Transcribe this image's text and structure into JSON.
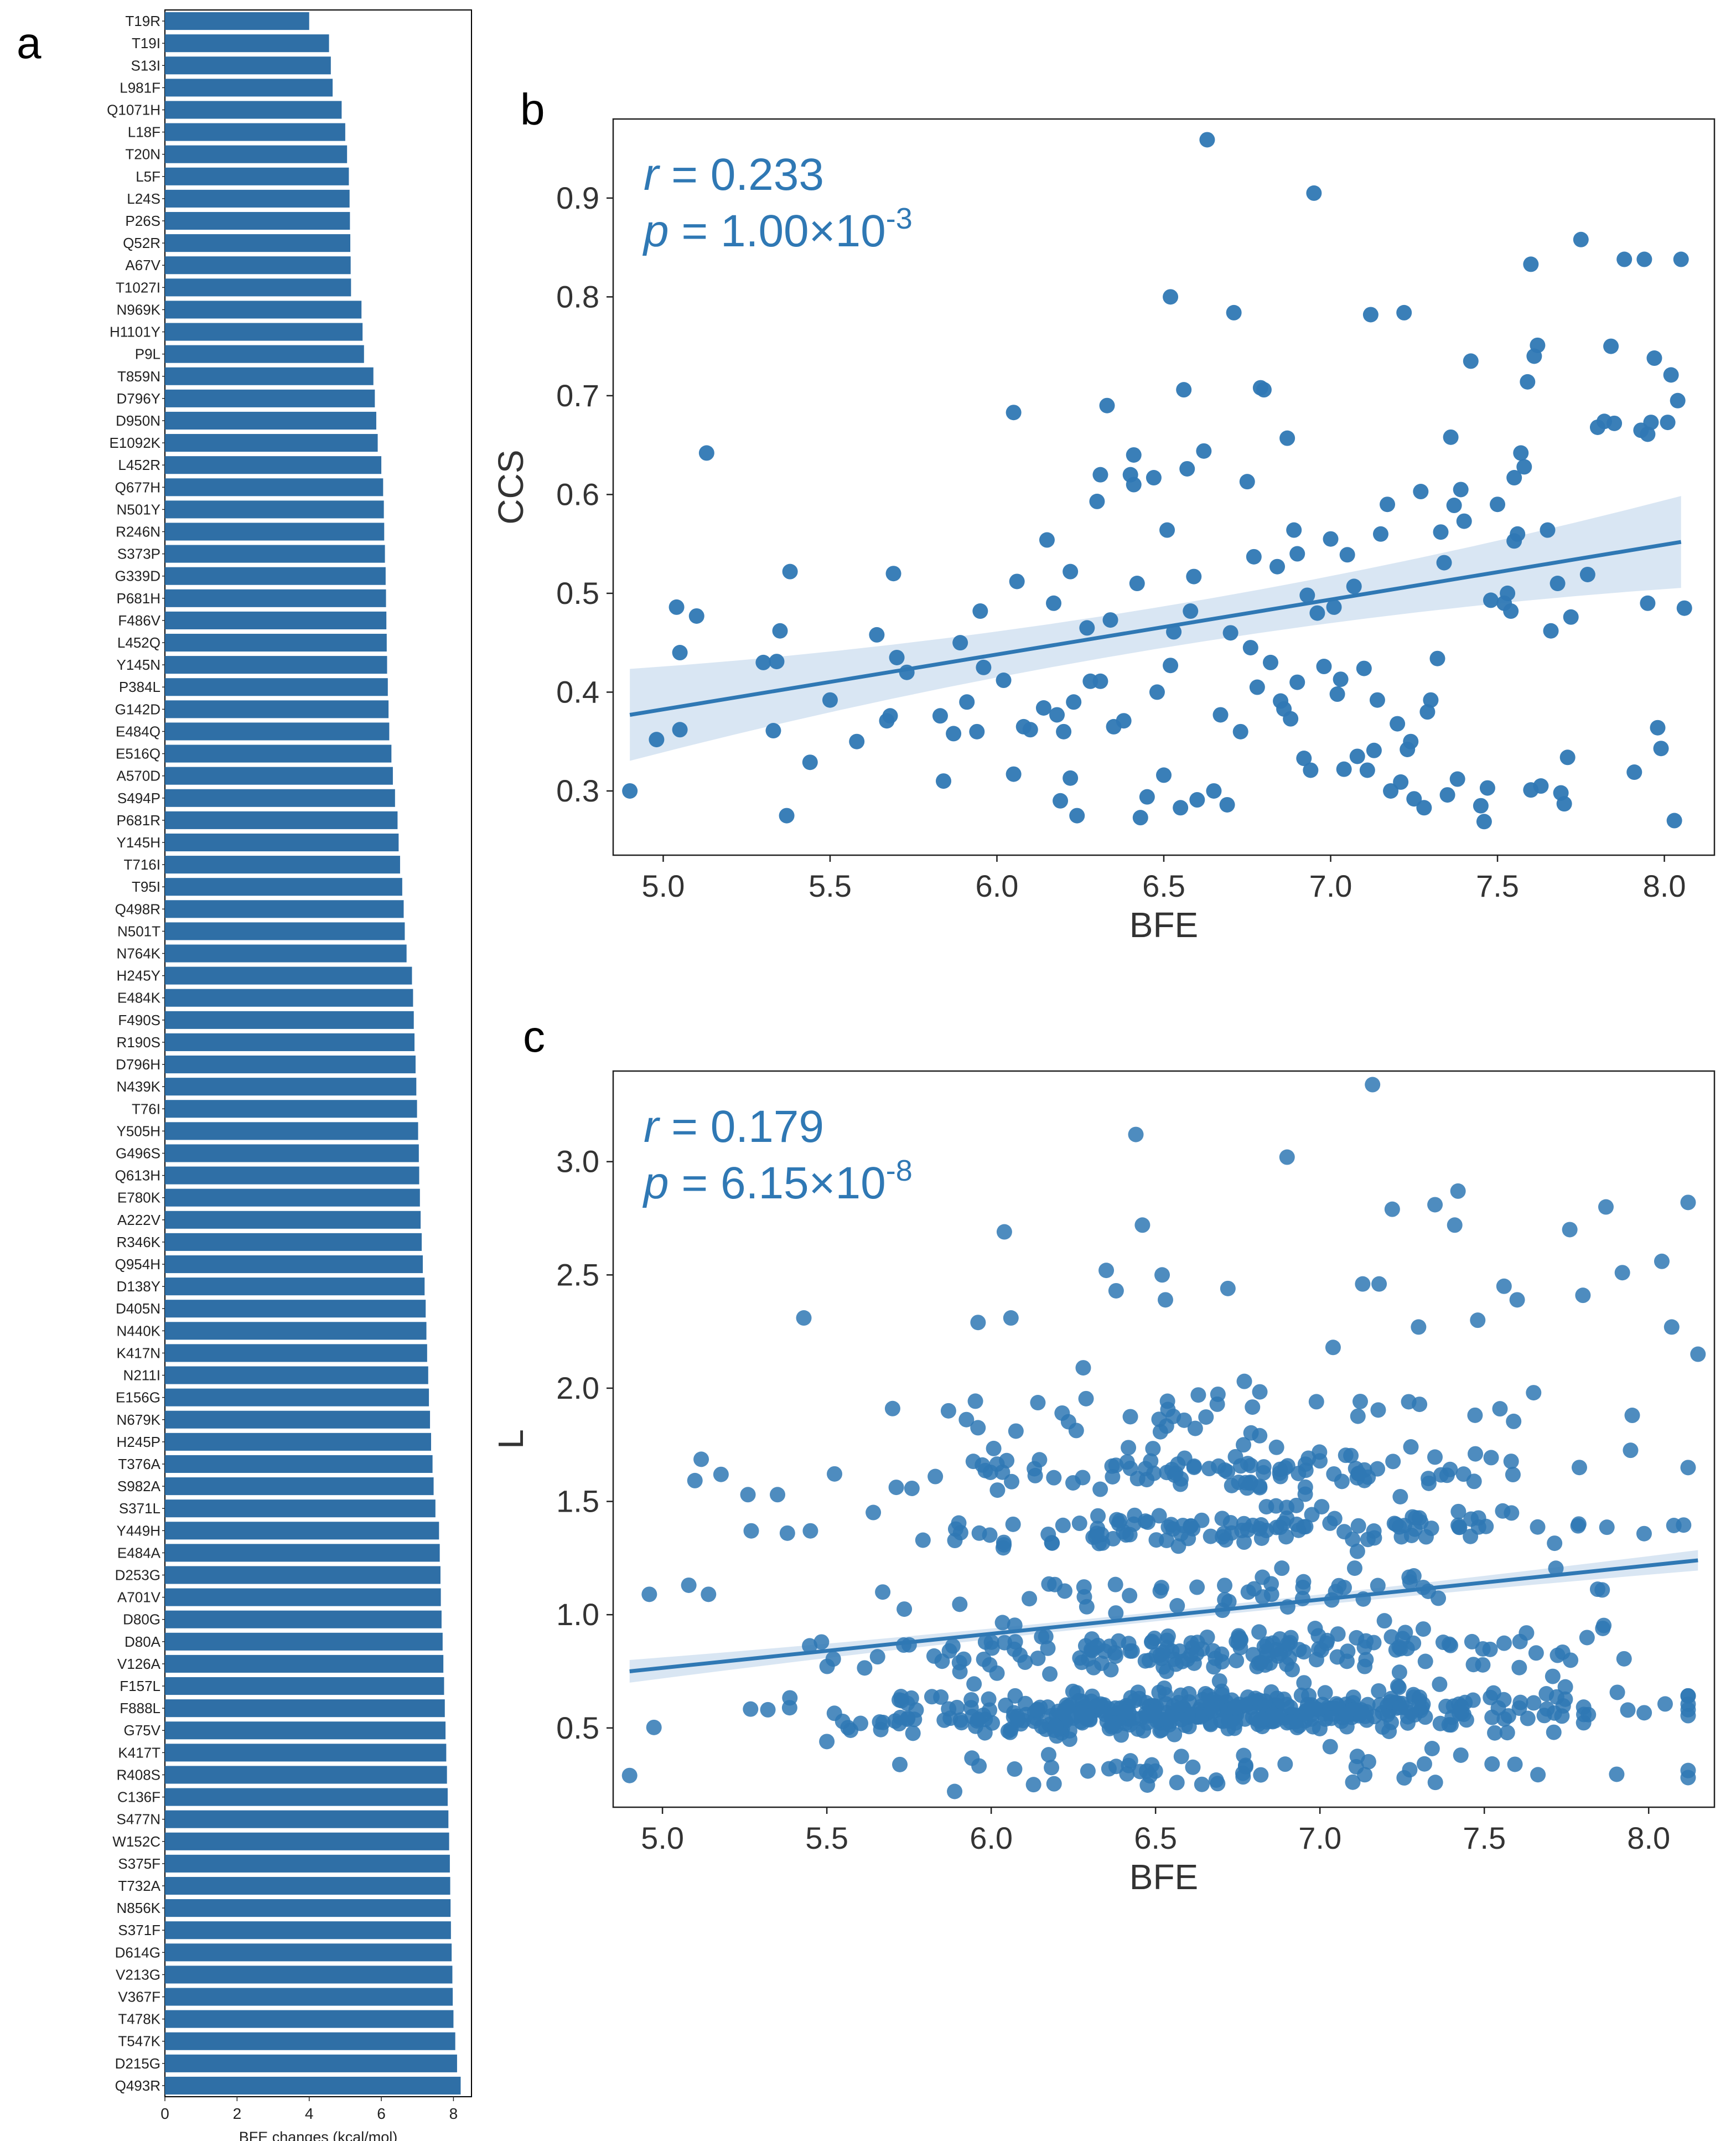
{
  "panels": {
    "a": "a",
    "b": "b",
    "c": "c"
  },
  "chart_data": [
    {
      "panel": "a",
      "type": "bar",
      "orientation": "horizontal",
      "color": "#2F6FA6",
      "xlabel": "BFE changes (kcal/mol)",
      "xlim": [
        0,
        8.5
      ],
      "xticks": [
        0,
        2,
        4,
        6,
        8
      ],
      "categories": [
        "T19R",
        "T19I",
        "S13I",
        "L981F",
        "Q1071H",
        "L18F",
        "T20N",
        "L5F",
        "L24S",
        "P26S",
        "Q52R",
        "A67V",
        "T1027I",
        "N969K",
        "H1101Y",
        "P9L",
        "T859N",
        "D796Y",
        "D950N",
        "E1092K",
        "L452R",
        "Q677H",
        "N501Y",
        "R246N",
        "S373P",
        "G339D",
        "P681H",
        "F486V",
        "L452Q",
        "Y145N",
        "P384L",
        "G142D",
        "E484Q",
        "E516Q",
        "A570D",
        "S494P",
        "P681R",
        "Y145H",
        "T716I",
        "T95I",
        "Q498R",
        "N501T",
        "N764K",
        "H245Y",
        "E484K",
        "F490S",
        "R190S",
        "D796H",
        "N439K",
        "T76I",
        "Y505H",
        "G496S",
        "Q613H",
        "E780K",
        "A222V",
        "R346K",
        "Q954H",
        "D138Y",
        "D405N",
        "N440K",
        "K417N",
        "N211I",
        "E156G",
        "N679K",
        "H245P",
        "T376A",
        "S982A",
        "S371L",
        "Y449H",
        "E484A",
        "D253G",
        "A701V",
        "D80G",
        "D80A",
        "V126A",
        "F157L",
        "F888L",
        "G75V",
        "K417T",
        "R408S",
        "C136F",
        "S477N",
        "W152C",
        "S375F",
        "T732A",
        "N856K",
        "S371F",
        "D614G",
        "V213G",
        "V367F",
        "T478K",
        "T547K",
        "D215G",
        "Q493R"
      ],
      "values": [
        4.0,
        4.55,
        4.6,
        4.65,
        4.9,
        5.0,
        5.05,
        5.1,
        5.12,
        5.13,
        5.14,
        5.15,
        5.16,
        5.45,
        5.48,
        5.52,
        5.78,
        5.82,
        5.86,
        5.9,
        6.0,
        6.05,
        6.07,
        6.08,
        6.1,
        6.12,
        6.13,
        6.14,
        6.15,
        6.16,
        6.18,
        6.2,
        6.22,
        6.28,
        6.32,
        6.38,
        6.45,
        6.48,
        6.52,
        6.58,
        6.62,
        6.65,
        6.7,
        6.85,
        6.88,
        6.9,
        6.92,
        6.95,
        6.97,
        6.99,
        7.02,
        7.04,
        7.05,
        7.07,
        7.09,
        7.12,
        7.15,
        7.2,
        7.23,
        7.25,
        7.27,
        7.3,
        7.32,
        7.35,
        7.38,
        7.42,
        7.45,
        7.5,
        7.6,
        7.62,
        7.64,
        7.65,
        7.67,
        7.7,
        7.72,
        7.74,
        7.76,
        7.78,
        7.8,
        7.82,
        7.84,
        7.86,
        7.88,
        7.9,
        7.91,
        7.92,
        7.93,
        7.95,
        7.97,
        7.98,
        8.0,
        8.05,
        8.1,
        8.2
      ]
    },
    {
      "panel": "b",
      "type": "scatter",
      "xlabel": "BFE",
      "ylabel": "CCS",
      "xlim": [
        4.85,
        8.15
      ],
      "ylim": [
        0.235,
        0.98
      ],
      "xticks": [
        5.0,
        5.5,
        6.0,
        6.5,
        7.0,
        7.5,
        8.0
      ],
      "yticks": [
        0.3,
        0.4,
        0.5,
        0.6,
        0.7,
        0.8,
        0.9
      ],
      "point_color": "#2F78B4",
      "regression": {
        "x": [
          4.9,
          8.05
        ],
        "y": [
          0.377,
          0.552
        ],
        "ci_low": [
          0.332,
          0.505
        ],
        "ci_high": [
          0.425,
          0.598
        ]
      },
      "annotation": {
        "r_label": "r",
        "r_text": " = 0.233",
        "p_label": "p",
        "p_text": " = 1.00",
        "times": "×",
        "p_base": "10",
        "p_exp": "-3"
      },
      "seed": 233,
      "n_points": 235,
      "points": [
        [
          4.9,
          0.3
        ],
        [
          4.98,
          0.352
        ],
        [
          5.04,
          0.486
        ],
        [
          5.05,
          0.44
        ],
        [
          5.05,
          0.362
        ],
        [
          5.1,
          0.477
        ],
        [
          5.13,
          0.642
        ],
        [
          5.3,
          0.43
        ],
        [
          5.33,
          0.361
        ],
        [
          5.34,
          0.431
        ],
        [
          5.35,
          0.462
        ],
        [
          5.37,
          0.275
        ],
        [
          5.38,
          0.522
        ],
        [
          5.44,
          0.329
        ],
        [
          5.5,
          0.392
        ],
        [
          5.58,
          0.35
        ],
        [
          5.64,
          0.458
        ],
        [
          5.67,
          0.371
        ],
        [
          5.68,
          0.376
        ],
        [
          5.69,
          0.52
        ],
        [
          5.7,
          0.435
        ],
        [
          5.73,
          0.42
        ],
        [
          5.83,
          0.376
        ],
        [
          5.84,
          0.31
        ],
        [
          5.87,
          0.358
        ],
        [
          5.89,
          0.45
        ],
        [
          5.91,
          0.39
        ],
        [
          5.94,
          0.36
        ],
        [
          5.95,
          0.482
        ],
        [
          5.96,
          0.425
        ],
        [
          6.02,
          0.412
        ],
        [
          6.05,
          0.317
        ],
        [
          6.05,
          0.683
        ],
        [
          6.06,
          0.512
        ],
        [
          6.08,
          0.365
        ],
        [
          6.1,
          0.362
        ],
        [
          6.14,
          0.384
        ],
        [
          6.15,
          0.554
        ],
        [
          6.17,
          0.49
        ],
        [
          6.18,
          0.377
        ],
        [
          6.19,
          0.29
        ],
        [
          6.2,
          0.36
        ],
        [
          6.22,
          0.522
        ],
        [
          6.22,
          0.313
        ],
        [
          6.23,
          0.39
        ],
        [
          6.24,
          0.275
        ],
        [
          6.27,
          0.465
        ],
        [
          6.28,
          0.411
        ],
        [
          6.3,
          0.593
        ],
        [
          6.31,
          0.62
        ],
        [
          6.31,
          0.411
        ],
        [
          6.33,
          0.69
        ],
        [
          6.34,
          0.473
        ],
        [
          6.35,
          0.365
        ],
        [
          6.38,
          0.371
        ],
        [
          6.4,
          0.62
        ],
        [
          6.41,
          0.61
        ],
        [
          6.41,
          0.64
        ],
        [
          6.42,
          0.51
        ],
        [
          6.43,
          0.273
        ],
        [
          6.45,
          0.294
        ],
        [
          6.47,
          0.617
        ],
        [
          6.48,
          0.4
        ],
        [
          6.5,
          0.316
        ],
        [
          6.51,
          0.564
        ],
        [
          6.52,
          0.427
        ],
        [
          6.52,
          0.8
        ],
        [
          6.53,
          0.461
        ],
        [
          6.55,
          0.283
        ],
        [
          6.56,
          0.706
        ],
        [
          6.57,
          0.626
        ],
        [
          6.58,
          0.482
        ],
        [
          6.59,
          0.517
        ],
        [
          6.6,
          0.291
        ],
        [
          6.62,
          0.644
        ],
        [
          6.63,
          0.959
        ],
        [
          6.65,
          0.3
        ],
        [
          6.67,
          0.377
        ],
        [
          6.69,
          0.286
        ],
        [
          6.7,
          0.46
        ],
        [
          6.71,
          0.784
        ],
        [
          6.73,
          0.36
        ],
        [
          6.75,
          0.613
        ],
        [
          6.76,
          0.445
        ],
        [
          6.77,
          0.537
        ],
        [
          6.78,
          0.405
        ],
        [
          6.79,
          0.708
        ],
        [
          6.8,
          0.706
        ],
        [
          6.82,
          0.43
        ],
        [
          6.84,
          0.527
        ],
        [
          6.85,
          0.391
        ],
        [
          6.86,
          0.383
        ],
        [
          6.87,
          0.657
        ],
        [
          6.88,
          0.373
        ],
        [
          6.89,
          0.564
        ],
        [
          6.9,
          0.41
        ],
        [
          6.9,
          0.54
        ],
        [
          6.92,
          0.333
        ],
        [
          6.93,
          0.498
        ],
        [
          6.94,
          0.321
        ],
        [
          6.95,
          0.905
        ],
        [
          6.96,
          0.48
        ],
        [
          6.98,
          0.426
        ],
        [
          7.0,
          0.555
        ],
        [
          7.01,
          0.486
        ],
        [
          7.02,
          0.398
        ],
        [
          7.03,
          0.413
        ],
        [
          7.04,
          0.322
        ],
        [
          7.05,
          0.539
        ],
        [
          7.07,
          0.507
        ],
        [
          7.08,
          0.335
        ],
        [
          7.1,
          0.424
        ],
        [
          7.11,
          0.321
        ],
        [
          7.12,
          0.782
        ],
        [
          7.13,
          0.341
        ],
        [
          7.14,
          0.392
        ],
        [
          7.15,
          0.56
        ],
        [
          7.17,
          0.59
        ],
        [
          7.18,
          0.3
        ],
        [
          7.2,
          0.368
        ],
        [
          7.21,
          0.309
        ],
        [
          7.22,
          0.784
        ],
        [
          7.23,
          0.342
        ],
        [
          7.24,
          0.35
        ],
        [
          7.25,
          0.292
        ],
        [
          7.27,
          0.603
        ],
        [
          7.28,
          0.283
        ],
        [
          7.29,
          0.38
        ],
        [
          7.3,
          0.392
        ],
        [
          7.32,
          0.434
        ],
        [
          7.33,
          0.562
        ],
        [
          7.34,
          0.531
        ],
        [
          7.35,
          0.296
        ],
        [
          7.36,
          0.658
        ],
        [
          7.37,
          0.589
        ],
        [
          7.38,
          0.312
        ],
        [
          7.39,
          0.605
        ],
        [
          7.4,
          0.573
        ],
        [
          7.42,
          0.735
        ],
        [
          7.45,
          0.285
        ],
        [
          7.46,
          0.269
        ],
        [
          7.47,
          0.303
        ],
        [
          7.48,
          0.493
        ],
        [
          7.5,
          0.59
        ],
        [
          7.52,
          0.49
        ],
        [
          7.53,
          0.5
        ],
        [
          7.54,
          0.482
        ],
        [
          7.55,
          0.617
        ],
        [
          7.55,
          0.553
        ],
        [
          7.56,
          0.56
        ],
        [
          7.57,
          0.642
        ],
        [
          7.58,
          0.628
        ],
        [
          7.59,
          0.714
        ],
        [
          7.6,
          0.833
        ],
        [
          7.6,
          0.301
        ],
        [
          7.61,
          0.74
        ],
        [
          7.62,
          0.751
        ],
        [
          7.63,
          0.305
        ],
        [
          7.65,
          0.564
        ],
        [
          7.66,
          0.462
        ],
        [
          7.68,
          0.51
        ],
        [
          7.69,
          0.298
        ],
        [
          7.7,
          0.287
        ],
        [
          7.71,
          0.334
        ],
        [
          7.72,
          0.476
        ],
        [
          7.75,
          0.858
        ],
        [
          7.77,
          0.519
        ],
        [
          7.8,
          0.668
        ],
        [
          7.82,
          0.674
        ],
        [
          7.84,
          0.75
        ],
        [
          7.85,
          0.672
        ],
        [
          7.88,
          0.838
        ],
        [
          7.91,
          0.319
        ],
        [
          7.93,
          0.665
        ],
        [
          7.94,
          0.838
        ],
        [
          7.95,
          0.49
        ],
        [
          7.95,
          0.661
        ],
        [
          7.96,
          0.673
        ],
        [
          7.97,
          0.738
        ],
        [
          7.98,
          0.364
        ],
        [
          7.99,
          0.343
        ],
        [
          8.01,
          0.673
        ],
        [
          8.02,
          0.721
        ],
        [
          8.03,
          0.27
        ],
        [
          8.04,
          0.695
        ],
        [
          8.05,
          0.838
        ],
        [
          8.06,
          0.485
        ]
      ]
    },
    {
      "panel": "c",
      "type": "scatter",
      "xlabel": "BFE",
      "ylabel": "L",
      "xlim": [
        4.85,
        8.2
      ],
      "ylim": [
        0.15,
        3.4
      ],
      "xticks": [
        5.0,
        5.5,
        6.0,
        6.5,
        7.0,
        7.5,
        8.0
      ],
      "yticks": [
        0.5,
        1.0,
        1.5,
        2.0,
        2.5,
        3.0
      ],
      "point_color": "#2F78B4",
      "regression": {
        "x": [
          4.9,
          8.15
        ],
        "y": [
          0.75,
          1.24
        ],
        "ci_low": [
          0.7,
          1.2
        ],
        "ci_high": [
          0.8,
          1.29
        ]
      },
      "annotation": {
        "r_label": "r",
        "r_text": " = 0.179",
        "p_label": "p",
        "p_text": " = 6.15",
        "times": "×",
        "p_base": "10",
        "p_exp": "-8"
      },
      "seed": 179,
      "n_points": 960,
      "extra_points": [
        [
          4.9,
          0.29
        ],
        [
          4.96,
          1.09
        ],
        [
          5.08,
          1.13
        ],
        [
          5.14,
          1.09
        ],
        [
          5.26,
          1.53
        ],
        [
          5.27,
          1.37
        ],
        [
          5.35,
          1.53
        ],
        [
          5.38,
          1.36
        ],
        [
          5.43,
          2.31
        ],
        [
          5.45,
          1.37
        ],
        [
          5.5,
          0.44
        ],
        [
          5.67,
          1.1
        ],
        [
          5.7,
          1.91
        ],
        [
          5.83,
          1.61
        ],
        [
          5.87,
          1.9
        ],
        [
          5.96,
          2.29
        ],
        [
          6.04,
          2.69
        ],
        [
          6.06,
          2.31
        ],
        [
          6.28,
          2.09
        ],
        [
          6.35,
          2.52
        ],
        [
          6.38,
          2.43
        ],
        [
          6.44,
          3.12
        ],
        [
          6.46,
          2.72
        ],
        [
          6.52,
          2.5
        ],
        [
          6.53,
          2.39
        ],
        [
          6.63,
          1.97
        ],
        [
          6.72,
          2.44
        ],
        [
          6.77,
          2.03
        ],
        [
          6.88,
          1.61
        ],
        [
          6.9,
          3.02
        ],
        [
          7.04,
          2.18
        ],
        [
          7.13,
          2.46
        ],
        [
          7.16,
          3.34
        ],
        [
          7.18,
          2.46
        ],
        [
          7.22,
          2.79
        ],
        [
          7.27,
          1.94
        ],
        [
          7.3,
          2.27
        ],
        [
          7.35,
          2.81
        ],
        [
          7.41,
          2.72
        ],
        [
          7.42,
          2.87
        ],
        [
          7.48,
          2.3
        ],
        [
          7.56,
          2.45
        ],
        [
          7.6,
          2.39
        ],
        [
          7.65,
          1.98
        ],
        [
          7.76,
          2.7
        ],
        [
          7.8,
          2.41
        ],
        [
          7.87,
          2.8
        ],
        [
          7.92,
          2.51
        ],
        [
          7.95,
          1.88
        ],
        [
          8.04,
          2.56
        ],
        [
          8.07,
          2.27
        ],
        [
          8.12,
          2.82
        ],
        [
          8.15,
          2.15
        ]
      ]
    }
  ]
}
